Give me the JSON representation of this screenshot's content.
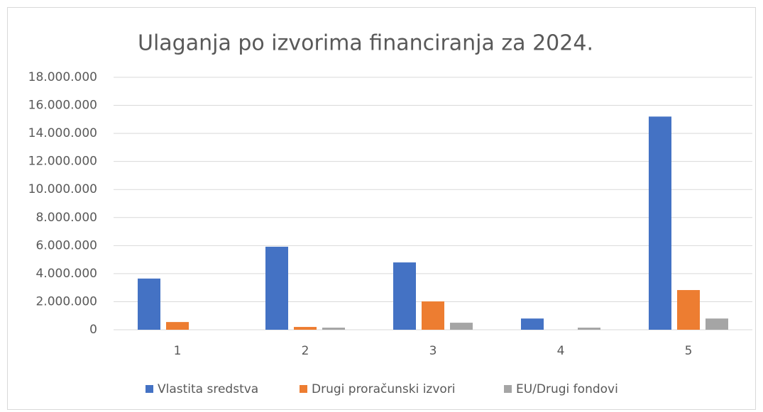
{
  "chart_data": {
    "type": "bar",
    "title": "Ulaganja po izvorima financiranja za 2024.",
    "categories": [
      "1",
      "2",
      "3",
      "4",
      "5"
    ],
    "series": [
      {
        "name": "Vlastita sredstva",
        "color": "#4472c4",
        "values": [
          3650000,
          5920000,
          4800000,
          800000,
          15200000
        ]
      },
      {
        "name": "Drugi proračunski izvori",
        "color": "#ed7d31",
        "values": [
          550000,
          200000,
          2020000,
          0,
          2830000
        ]
      },
      {
        "name": "EU/Drugi fondovi",
        "color": "#a5a5a5",
        "values": [
          0,
          150000,
          500000,
          150000,
          800000
        ]
      }
    ],
    "ylim": [
      0,
      18000000
    ],
    "yticks": [
      0,
      {
        "value": 2000000,
        "label": "2.000.000"
      },
      {
        "value": 4000000,
        "label": "4.000.000"
      },
      {
        "value": 6000000,
        "label": "6.000.000"
      },
      {
        "value": 8000000,
        "label": "8.000.000"
      },
      {
        "value": 10000000,
        "label": "10.000.000"
      },
      {
        "value": 12000000,
        "label": "12.000.000"
      },
      {
        "value": 14000000,
        "label": "14.000.000"
      },
      {
        "value": 16000000,
        "label": "16.000.000"
      },
      {
        "value": 18000000,
        "label": "18.000.000"
      }
    ],
    "grid": true,
    "legend": "bottom"
  }
}
